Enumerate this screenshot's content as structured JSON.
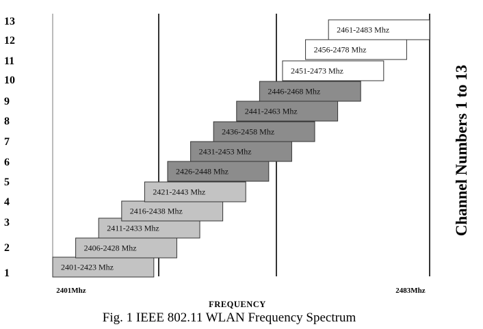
{
  "axis": {
    "x_label": "FREQUENCY",
    "x_min_label": "2401Mhz",
    "x_max_label": "2483Mhz",
    "x_min": 2401,
    "x_max": 2483,
    "y_label": "Channel Numbers 1 to 13",
    "y_ticks": [
      "1",
      "2",
      "3",
      "4",
      "5",
      "6",
      "7",
      "8",
      "9",
      "10",
      "11",
      "12",
      "13"
    ]
  },
  "caption": "Fig. 1 IEEE 802.11 WLAN Frequency Spectrum",
  "colors": {
    "light_gray": "#c3c3c3",
    "dark_gray": "#8c8c8c",
    "white": "#ffffff",
    "outline": "#333333"
  },
  "chart_data": {
    "type": "gantt",
    "xlabel": "FREQUENCY",
    "ylabel": "Channel Numbers 1 to 13",
    "xlim": [
      2401,
      2483
    ],
    "boundary_lines": [
      2401,
      2424,
      2449,
      2483
    ],
    "channels": [
      {
        "channel": 1,
        "start": 2401,
        "end": 2423,
        "label": "2401-2423 Mhz",
        "fill": "light_gray"
      },
      {
        "channel": 2,
        "start": 2406,
        "end": 2428,
        "label": "2406-2428 Mhz",
        "fill": "light_gray"
      },
      {
        "channel": 3,
        "start": 2411,
        "end": 2433,
        "label": "2411-2433 Mhz",
        "fill": "light_gray"
      },
      {
        "channel": 4,
        "start": 2416,
        "end": 2438,
        "label": "2416-2438 Mhz",
        "fill": "light_gray"
      },
      {
        "channel": 5,
        "start": 2421,
        "end": 2443,
        "label": "2421-2443 Mhz",
        "fill": "light_gray"
      },
      {
        "channel": 6,
        "start": 2426,
        "end": 2448,
        "label": "2426-2448 Mhz",
        "fill": "dark_gray"
      },
      {
        "channel": 7,
        "start": 2431,
        "end": 2453,
        "label": "2431-2453 Mhz",
        "fill": "dark_gray"
      },
      {
        "channel": 8,
        "start": 2436,
        "end": 2458,
        "label": "2436-2458 Mhz",
        "fill": "dark_gray"
      },
      {
        "channel": 9,
        "start": 2441,
        "end": 2463,
        "label": "2441-2463 Mhz",
        "fill": "dark_gray"
      },
      {
        "channel": 10,
        "start": 2446,
        "end": 2468,
        "label": "2446-2468 Mhz",
        "fill": "dark_gray"
      },
      {
        "channel": 11,
        "start": 2451,
        "end": 2473,
        "label": "2451-2473 Mhz",
        "fill": "white"
      },
      {
        "channel": 12,
        "start": 2456,
        "end": 2478,
        "label": "2456-2478 Mhz",
        "fill": "white"
      },
      {
        "channel": 13,
        "start": 2461,
        "end": 2483,
        "label": "2461-2483 Mhz",
        "fill": "white"
      }
    ]
  }
}
